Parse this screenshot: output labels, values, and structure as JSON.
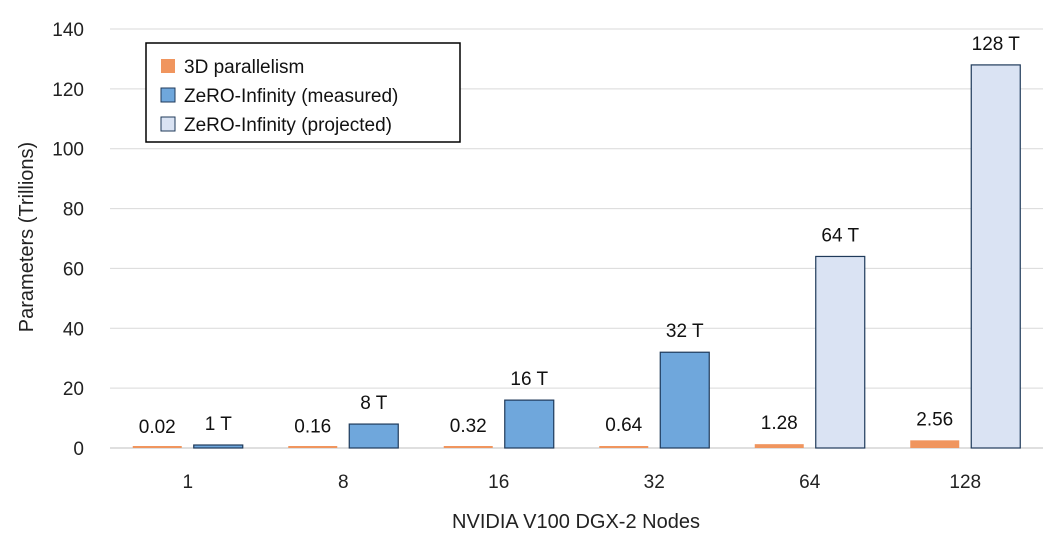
{
  "chart_data": {
    "type": "bar",
    "title": "",
    "xlabel": "NVIDIA V100 DGX-2 Nodes",
    "ylabel": "Parameters (Trillions)",
    "ylim": [
      0,
      140
    ],
    "yticks": [
      0,
      20,
      40,
      60,
      80,
      100,
      120,
      140
    ],
    "grid": true,
    "legend_position": "top-left",
    "categories": [
      "1",
      "8",
      "16",
      "32",
      "64",
      "128"
    ],
    "series": [
      {
        "name": "3D parallelism",
        "color": "#f0955e",
        "values": [
          0.02,
          0.16,
          0.32,
          0.64,
          1.28,
          2.56
        ],
        "labels": [
          "0.02",
          "0.16",
          "0.32",
          "0.64",
          "1.28",
          "2.56"
        ]
      },
      {
        "name": "ZeRO-Infinity (measured)",
        "color": "#6fa7dc",
        "values": [
          1,
          8,
          16,
          32,
          null,
          null
        ],
        "labels": [
          "1 T",
          "8 T",
          "16 T",
          "32 T",
          null,
          null
        ]
      },
      {
        "name": "ZeRO-Infinity (projected)",
        "color": "#dae3f3",
        "values": [
          null,
          null,
          null,
          null,
          64,
          128
        ],
        "labels": [
          null,
          null,
          null,
          null,
          "64 T",
          "128 T"
        ]
      }
    ]
  }
}
